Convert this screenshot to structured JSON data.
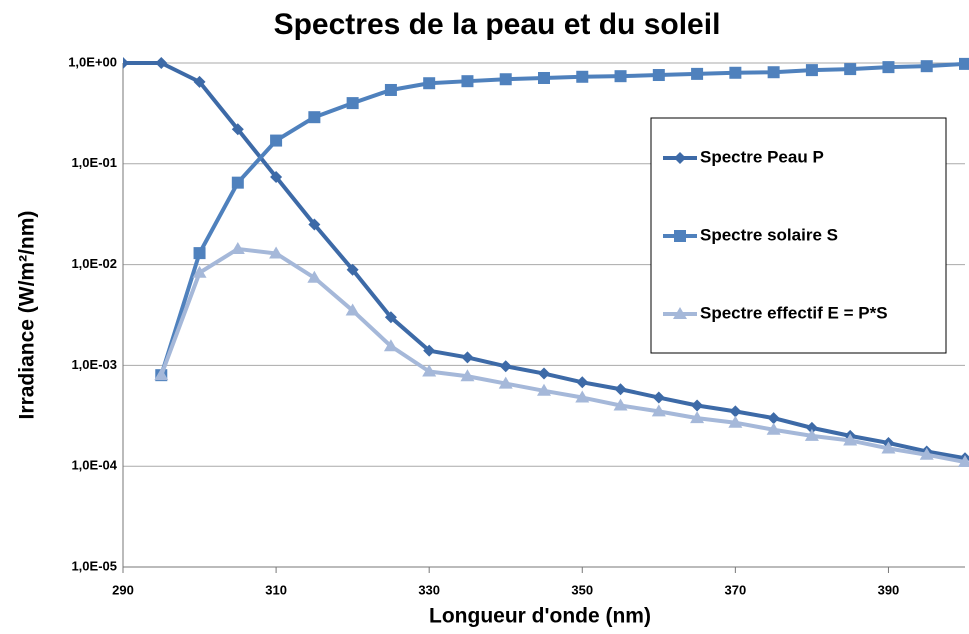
{
  "chart_data": {
    "type": "line",
    "title": "Spectres de la peau et du soleil",
    "x_label": "Longueur d'onde (nm)",
    "y_label": "Irradiance (W/m²/nm)",
    "log_y": true,
    "grid": true,
    "legend": "right",
    "x": [
      290,
      295,
      300,
      305,
      310,
      315,
      320,
      325,
      330,
      335,
      340,
      345,
      350,
      355,
      360,
      365,
      370,
      375,
      380,
      385,
      390,
      395,
      400
    ],
    "xlim": [
      290,
      400
    ],
    "xticks": [
      290,
      310,
      330,
      350,
      370,
      390
    ],
    "ylim": [
      1e-05,
      1
    ],
    "yticks": [
      {
        "value": 1e-05,
        "label": "1,0E-05"
      },
      {
        "value": 0.0001,
        "label": "1,0E-04"
      },
      {
        "value": 0.001,
        "label": "1,0E-03"
      },
      {
        "value": 0.01,
        "label": "1,0E-02"
      },
      {
        "value": 0.1,
        "label": "1,0E-01"
      },
      {
        "value": 1,
        "label": "1,0E+00"
      }
    ],
    "series": [
      {
        "name": "Spectre Peau P",
        "color": "#3d6aa7",
        "marker": "diamond",
        "values": [
          1.0,
          1.0,
          0.65,
          0.22,
          0.074,
          0.025,
          0.0089,
          0.003,
          0.0014,
          0.0012,
          0.00098,
          0.00083,
          0.00068,
          0.00058,
          0.00048,
          0.0004,
          0.00035,
          0.0003,
          0.00024,
          0.0002,
          0.00017,
          0.00014,
          0.00012
        ]
      },
      {
        "name": "Spectre solaire S",
        "color": "#4f81bd",
        "marker": "square",
        "values": [
          null,
          0.0008,
          0.013,
          0.065,
          0.17,
          0.29,
          0.4,
          0.54,
          0.63,
          0.66,
          0.69,
          0.71,
          0.73,
          0.74,
          0.76,
          0.78,
          0.8,
          0.81,
          0.85,
          0.87,
          0.91,
          0.93,
          0.98
        ]
      },
      {
        "name": "Spectre effectif E = P*S",
        "color": "#a5b8d9",
        "marker": "triangle",
        "values": [
          null,
          0.0008,
          0.0083,
          0.0143,
          0.0129,
          0.0074,
          0.0035,
          0.00155,
          0.00087,
          0.00078,
          0.00066,
          0.00056,
          0.00048,
          0.0004,
          0.00035,
          0.0003,
          0.00027,
          0.00023,
          0.0002,
          0.00018,
          0.00015,
          0.00013,
          0.00011
        ]
      }
    ]
  }
}
